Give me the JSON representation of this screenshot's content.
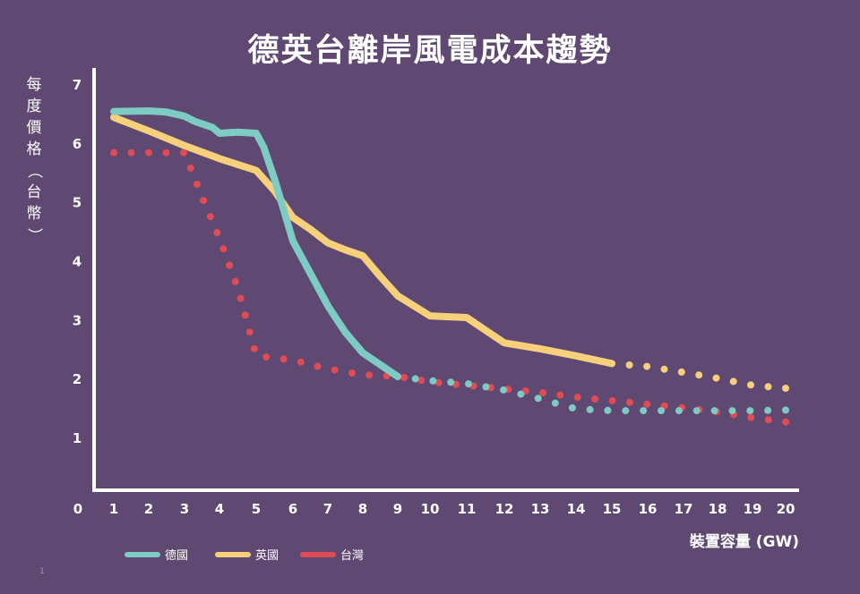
{
  "chart_data": {
    "type": "line",
    "title": "德英台離岸風電成本趨勢",
    "ylabel": "每度價格（台幣）",
    "xlabel": "裝置容量 (GW)",
    "xlim": [
      0,
      20
    ],
    "ylim": [
      0,
      7
    ],
    "x_ticks": [
      "0",
      "1",
      "2",
      "3",
      "4",
      "5",
      "6",
      "7",
      "8",
      "9",
      "10",
      "11",
      "12",
      "13",
      "14",
      "15",
      "16",
      "17",
      "18",
      "19",
      "20"
    ],
    "y_ticks": [
      "1",
      "2",
      "3",
      "4",
      "5",
      "6",
      "7"
    ],
    "grid": false,
    "legend_position": "bottom",
    "series": [
      {
        "name": "德國",
        "color": "#7ecbc4",
        "solid": [
          [
            1,
            6.55
          ],
          [
            2,
            6.56
          ],
          [
            2.5,
            6.54
          ],
          [
            3,
            6.47
          ],
          [
            3.3,
            6.38
          ],
          [
            3.8,
            6.28
          ],
          [
            4,
            6.18
          ],
          [
            4.5,
            6.2
          ],
          [
            5,
            6.18
          ],
          [
            5.2,
            5.95
          ],
          [
            5.5,
            5.4
          ],
          [
            6,
            4.35
          ],
          [
            6.5,
            3.8
          ],
          [
            7,
            3.25
          ],
          [
            7.5,
            2.8
          ],
          [
            8,
            2.45
          ],
          [
            8.5,
            2.25
          ],
          [
            9,
            2.05
          ]
        ],
        "projected": [
          [
            9,
            2.05
          ],
          [
            10,
            1.98
          ],
          [
            11,
            1.93
          ],
          [
            12,
            1.82
          ],
          [
            13,
            1.67
          ],
          [
            14,
            1.5
          ],
          [
            15,
            1.47
          ],
          [
            16,
            1.47
          ],
          [
            17,
            1.47
          ],
          [
            18,
            1.47
          ],
          [
            19,
            1.47
          ],
          [
            20,
            1.48
          ]
        ]
      },
      {
        "name": "英國",
        "color": "#f6d07a",
        "solid": [
          [
            1,
            6.45
          ],
          [
            2,
            6.22
          ],
          [
            3,
            5.97
          ],
          [
            4,
            5.75
          ],
          [
            4.5,
            5.65
          ],
          [
            5,
            5.55
          ],
          [
            5.5,
            5.2
          ],
          [
            6,
            4.75
          ],
          [
            6.5,
            4.55
          ],
          [
            7,
            4.32
          ],
          [
            7.5,
            4.2
          ],
          [
            8,
            4.1
          ],
          [
            8.5,
            3.75
          ],
          [
            9,
            3.42
          ],
          [
            9.5,
            3.25
          ],
          [
            10,
            3.08
          ],
          [
            11,
            3.05
          ],
          [
            12,
            2.62
          ],
          [
            13,
            2.52
          ],
          [
            14,
            2.4
          ],
          [
            15,
            2.27
          ]
        ],
        "projected": [
          [
            15,
            2.27
          ],
          [
            16,
            2.22
          ],
          [
            17,
            2.12
          ],
          [
            18,
            2.02
          ],
          [
            19,
            1.9
          ],
          [
            20,
            1.85
          ]
        ]
      },
      {
        "name": "台灣",
        "color": "#e04c53",
        "solid": [],
        "projected": [
          [
            1,
            5.85
          ],
          [
            2,
            5.85
          ],
          [
            3,
            5.85
          ],
          [
            3.5,
            5.1
          ],
          [
            4,
            4.4
          ],
          [
            4.5,
            3.55
          ],
          [
            5,
            2.4
          ],
          [
            6,
            2.33
          ],
          [
            7,
            2.18
          ],
          [
            8,
            2.08
          ],
          [
            9,
            2.05
          ],
          [
            10,
            1.96
          ],
          [
            11,
            1.9
          ],
          [
            12,
            1.84
          ],
          [
            13,
            1.78
          ],
          [
            14,
            1.7
          ],
          [
            15,
            1.64
          ],
          [
            16,
            1.58
          ],
          [
            17,
            1.52
          ],
          [
            18,
            1.45
          ],
          [
            19,
            1.35
          ],
          [
            20,
            1.28
          ]
        ]
      }
    ]
  },
  "page_number": "1"
}
